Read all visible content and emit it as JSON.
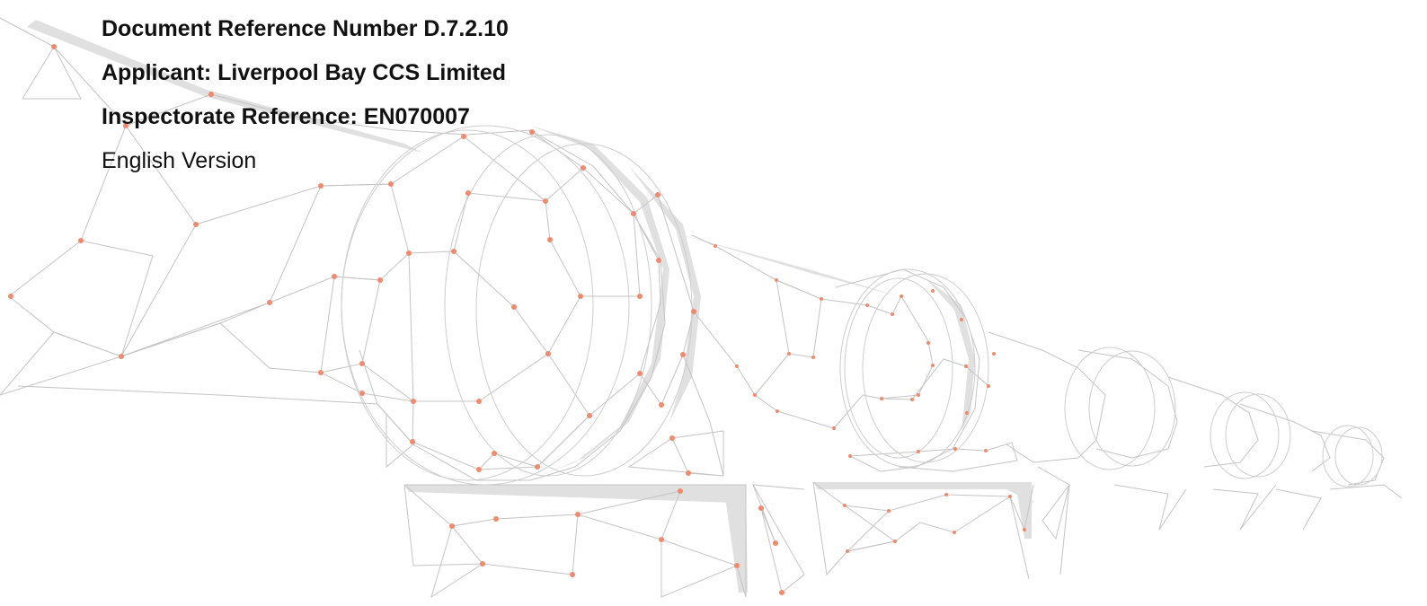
{
  "document": {
    "reference_number": "Document Reference Number D.7.2.10",
    "applicant": "Applicant: Liverpool Bay CCS Limited",
    "inspectorate_reference": "Inspectorate Reference: EN070007",
    "version": "English Version"
  },
  "graphic": {
    "description_icon": "pipeline-wireframe-illustration",
    "line_color": "#bdbdbd",
    "band_color": "#d4d4d4",
    "node_color": "#f08a6e"
  }
}
